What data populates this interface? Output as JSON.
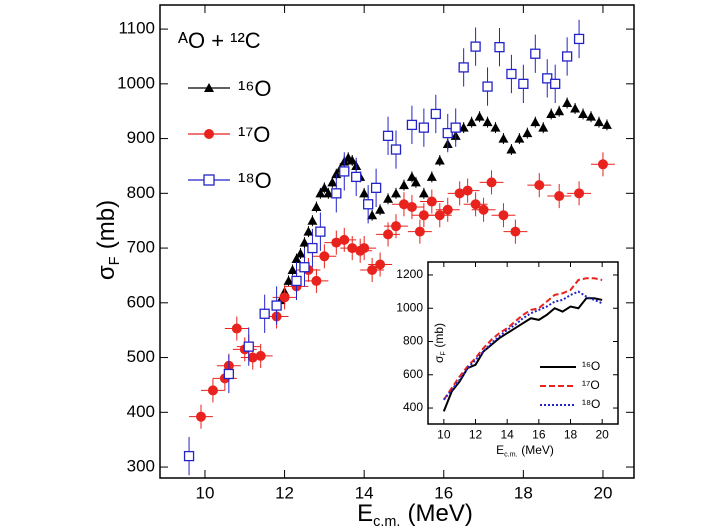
{
  "chart_data": [
    {
      "type": "scatter",
      "annotation": "ᴬO + ¹²C",
      "x_label": {
        "text": "E",
        "sub": "c.m.",
        "unit": "(MeV)"
      },
      "y_label": {
        "text": "σ",
        "sub": "F",
        "unit": "(mb)"
      },
      "xlim": [
        8.87,
        20.78
      ],
      "ylim": [
        280,
        1144
      ],
      "xticks": [
        10,
        12,
        14,
        16,
        18,
        20
      ],
      "yticks": [
        300,
        400,
        500,
        600,
        700,
        800,
        900,
        1000,
        1100
      ],
      "grid": false,
      "legend": "upper left",
      "series": [
        {
          "name": "¹⁶O",
          "color": "#000000",
          "marker": "triangle",
          "x": [
            11.9,
            12.0,
            12.1,
            12.2,
            12.3,
            12.4,
            12.5,
            12.6,
            12.7,
            12.8,
            12.9,
            13.0,
            13.1,
            13.2,
            13.3,
            13.4,
            13.5,
            13.6,
            13.7,
            13.8,
            13.9,
            14.0,
            14.1,
            14.2,
            14.4,
            14.6,
            14.8,
            15.0,
            15.2,
            15.3,
            15.5,
            15.7,
            15.9,
            16.1,
            16.3,
            16.5,
            16.7,
            16.9,
            17.1,
            17.3,
            17.5,
            17.7,
            17.9,
            18.1,
            18.3,
            18.5,
            18.7,
            18.9,
            19.1,
            19.3,
            19.5,
            19.7,
            19.9,
            20.1
          ],
          "values": [
            605,
            620,
            640,
            660,
            680,
            690,
            710,
            730,
            750,
            775,
            800,
            810,
            800,
            820,
            835,
            845,
            858,
            865,
            860,
            850,
            830,
            800,
            780,
            760,
            770,
            790,
            800,
            815,
            830,
            820,
            800,
            830,
            860,
            890,
            905,
            920,
            930,
            940,
            930,
            920,
            900,
            880,
            900,
            910,
            930,
            920,
            945,
            950,
            965,
            955,
            945,
            940,
            930,
            925
          ],
          "x_error": 0.03,
          "y_error": 10
        },
        {
          "name": "¹⁷O",
          "color": "#e8231d",
          "marker": "circle",
          "x": [
            9.9,
            10.2,
            10.5,
            10.6,
            10.8,
            11.0,
            11.1,
            11.2,
            11.4,
            11.8,
            12.0,
            12.3,
            12.6,
            12.8,
            13.0,
            13.3,
            13.5,
            13.7,
            13.9,
            14.0,
            14.2,
            14.4,
            14.6,
            14.8,
            15.0,
            15.2,
            15.4,
            15.5,
            15.7,
            15.9,
            16.1,
            16.4,
            16.6,
            16.8,
            17.0,
            17.2,
            17.5,
            17.8,
            18.4,
            18.9,
            19.4,
            20.0
          ],
          "values": [
            392,
            440,
            462,
            485,
            553,
            515,
            520,
            500,
            503,
            575,
            610,
            630,
            660,
            640,
            685,
            710,
            715,
            700,
            695,
            700,
            660,
            670,
            725,
            740,
            780,
            775,
            730,
            760,
            785,
            760,
            770,
            800,
            805,
            780,
            770,
            820,
            760,
            730,
            815,
            795,
            800,
            853
          ],
          "x_error": 0.3,
          "y_error": 22
        },
        {
          "name": "¹⁸O",
          "color": "#2323c8",
          "marker": "square-open",
          "x": [
            9.6,
            10.6,
            11.1,
            11.5,
            11.8,
            12.3,
            12.5,
            12.7,
            12.9,
            13.3,
            13.5,
            13.8,
            14.1,
            14.3,
            14.6,
            14.8,
            15.2,
            15.5,
            15.8,
            16.1,
            16.3,
            16.5,
            16.8,
            17.1,
            17.4,
            17.7,
            18.0,
            18.3,
            18.6,
            18.8,
            19.1,
            19.4
          ],
          "values": [
            320,
            470,
            520,
            580,
            595,
            640,
            665,
            700,
            730,
            800,
            840,
            830,
            780,
            810,
            905,
            880,
            925,
            920,
            945,
            910,
            920,
            1030,
            1068,
            995,
            1067,
            1018,
            1000,
            1055,
            1010,
            1000,
            1050,
            1082
          ],
          "x_error": 0.12,
          "y_error": 35
        }
      ]
    },
    {
      "type": "line",
      "x_label": {
        "text": "E",
        "sub": "c.m.",
        "unit": "(MeV)"
      },
      "y_label": {
        "text": "σ",
        "sub": "F",
        "unit": "(mb)"
      },
      "xlim": [
        9.0,
        21.0
      ],
      "ylim": [
        304,
        1278
      ],
      "xticks": [
        10,
        12,
        14,
        16,
        18,
        20
      ],
      "yticks": [
        400,
        600,
        800,
        1000,
        1200
      ],
      "grid": false,
      "legend": "lower right",
      "x": [
        10,
        10.5,
        11,
        11.5,
        12,
        12.5,
        13,
        13.5,
        14,
        14.5,
        15,
        15.5,
        16,
        16.5,
        17,
        17.5,
        18,
        18.5,
        19,
        19.5,
        20
      ],
      "series": [
        {
          "name": "¹⁶O",
          "color": "#000000",
          "dash": "solid",
          "values": [
            380,
            500,
            560,
            640,
            660,
            740,
            780,
            820,
            850,
            880,
            910,
            940,
            930,
            960,
            1000,
            980,
            1010,
            1000,
            1060,
            1060,
            1050
          ]
        },
        {
          "name": "¹⁷O",
          "color": "#e8231d",
          "dash": "dashed",
          "values": [
            450,
            520,
            590,
            650,
            700,
            760,
            810,
            850,
            880,
            920,
            960,
            990,
            1000,
            1040,
            1080,
            1090,
            1110,
            1170,
            1180,
            1180,
            1170
          ]
        },
        {
          "name": "¹⁸O",
          "color": "#2323c8",
          "dash": "dotted",
          "values": [
            450,
            510,
            570,
            640,
            690,
            740,
            790,
            830,
            870,
            900,
            940,
            970,
            990,
            1010,
            1040,
            1050,
            1080,
            1100,
            1070,
            1050,
            1030
          ]
        }
      ]
    }
  ]
}
